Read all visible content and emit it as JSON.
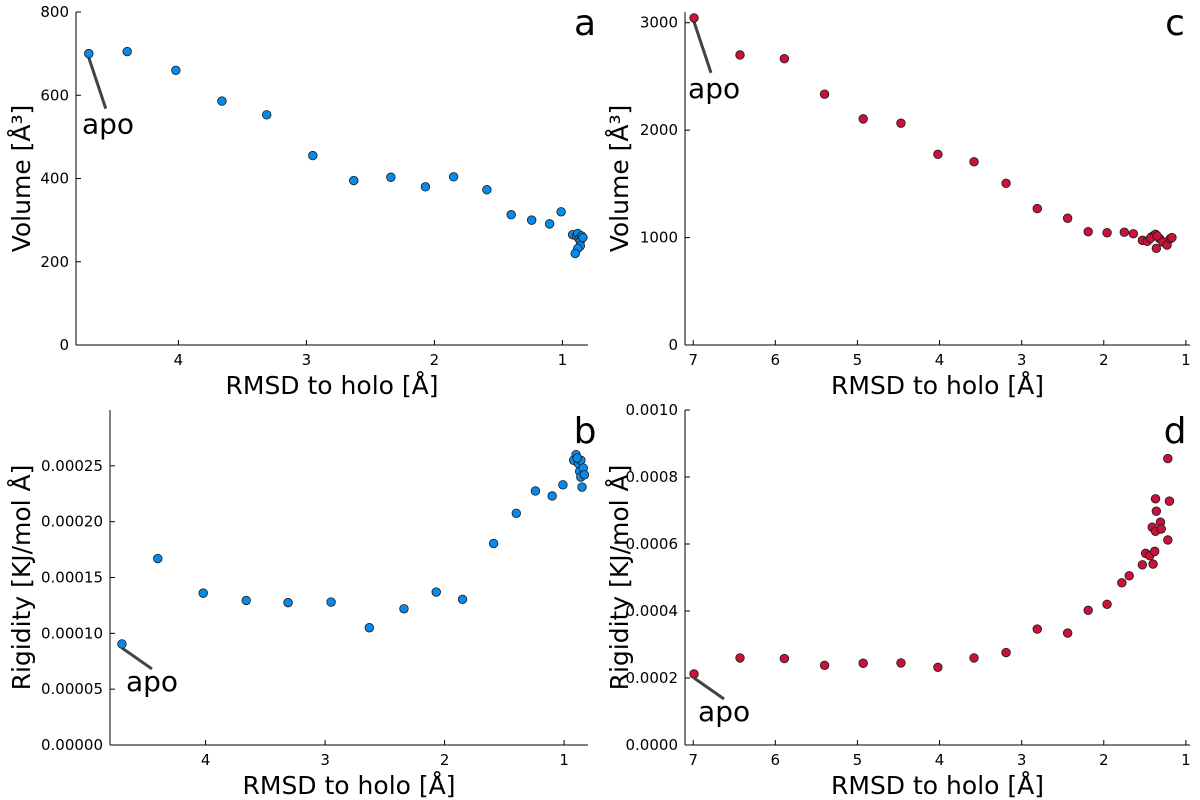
{
  "chart_data": [
    {
      "type": "scatter",
      "panel_label": "a",
      "xlabel": "RMSD to holo [Å]",
      "ylabel": "Volume [Å³]",
      "x_reversed": true,
      "xlim": [
        4.8,
        0.8
      ],
      "ylim": [
        0,
        800
      ],
      "xticks": [
        4,
        3,
        2,
        1
      ],
      "yticks": [
        0,
        200,
        400,
        600,
        800
      ],
      "xtick_labels": [
        "4",
        "3",
        "2",
        "1"
      ],
      "ytick_labels": [
        "0",
        "200",
        "400",
        "600",
        "800"
      ],
      "grid": false,
      "color": "#0a8ae8",
      "annotation": {
        "text": "apo",
        "x": 4.7,
        "y": 700
      },
      "points": [
        [
          4.7,
          700
        ],
        [
          4.4,
          705
        ],
        [
          4.02,
          660
        ],
        [
          3.66,
          586
        ],
        [
          3.31,
          553
        ],
        [
          2.95,
          455
        ],
        [
          2.63,
          395
        ],
        [
          2.34,
          403
        ],
        [
          2.07,
          380
        ],
        [
          1.85,
          404
        ],
        [
          1.59,
          373
        ],
        [
          1.4,
          313
        ],
        [
          1.24,
          300
        ],
        [
          1.1,
          291
        ],
        [
          1.01,
          320
        ],
        [
          0.92,
          265
        ],
        [
          0.89,
          262
        ],
        [
          0.88,
          268
        ],
        [
          0.87,
          255
        ],
        [
          0.86,
          250
        ],
        [
          0.86,
          238
        ],
        [
          0.88,
          232
        ],
        [
          0.9,
          220
        ],
        [
          0.85,
          262
        ],
        [
          0.84,
          258
        ]
      ]
    },
    {
      "type": "scatter",
      "panel_label": "b",
      "xlabel": "RMSD to holo [Å]",
      "ylabel": "Rigidity [KJ/mol Å]",
      "x_reversed": true,
      "xlim": [
        4.8,
        0.8
      ],
      "ylim": [
        0,
        0.0003
      ],
      "xticks": [
        4,
        3,
        2,
        1
      ],
      "yticks": [
        0,
        5e-05,
        0.0001,
        0.00015,
        0.0002,
        0.00025
      ],
      "xtick_labels": [
        "4",
        "3",
        "2",
        "1"
      ],
      "ytick_labels": [
        "0.00000",
        "0.00005",
        "0.00010",
        "0.00015",
        "0.00020",
        "0.00025"
      ],
      "grid": false,
      "color": "#0a8ae8",
      "annotation": {
        "text": "apo",
        "x": 4.7,
        "y": 9.05e-05
      },
      "points": [
        [
          4.7,
          9.05e-05
        ],
        [
          4.4,
          0.000167
        ],
        [
          4.02,
          0.000136
        ],
        [
          3.66,
          0.0001295
        ],
        [
          3.31,
          0.0001275
        ],
        [
          2.95,
          0.000128
        ],
        [
          2.63,
          0.000105
        ],
        [
          2.34,
          0.000122
        ],
        [
          2.07,
          0.000137
        ],
        [
          1.85,
          0.0001305
        ],
        [
          1.59,
          0.0001805
        ],
        [
          1.4,
          0.0002075
        ],
        [
          1.24,
          0.0002275
        ],
        [
          1.1,
          0.000223
        ],
        [
          1.01,
          0.000233
        ],
        [
          0.92,
          0.000255
        ],
        [
          0.9,
          0.00026
        ],
        [
          0.88,
          0.000252
        ],
        [
          0.87,
          0.000245
        ],
        [
          0.86,
          0.00024
        ],
        [
          0.85,
          0.000231
        ],
        [
          0.86,
          0.000255
        ],
        [
          0.84,
          0.000248
        ],
        [
          0.83,
          0.000242
        ],
        [
          0.89,
          0.000257
        ]
      ]
    },
    {
      "type": "scatter",
      "panel_label": "c",
      "xlabel": "RMSD to holo [Å]",
      "ylabel": "Volume [Å³]",
      "x_reversed": true,
      "xlim": [
        7.1,
        0.95
      ],
      "ylim": [
        0,
        3100
      ],
      "xticks": [
        7,
        6,
        5,
        4,
        3,
        2,
        1
      ],
      "yticks": [
        0,
        1000,
        2000,
        3000
      ],
      "xtick_labels": [
        "7",
        "6",
        "5",
        "4",
        "3",
        "2",
        "1"
      ],
      "ytick_labels": [
        "0",
        "1000",
        "2000",
        "3000"
      ],
      "grid": false,
      "color": "#c8123a",
      "annotation": {
        "text": "apo",
        "x": 6.99,
        "y": 3045
      },
      "points": [
        [
          6.99,
          3045
        ],
        [
          6.43,
          2700
        ],
        [
          5.89,
          2665
        ],
        [
          5.4,
          2335
        ],
        [
          4.93,
          2105
        ],
        [
          4.47,
          2065
        ],
        [
          4.02,
          1775
        ],
        [
          3.58,
          1705
        ],
        [
          3.19,
          1505
        ],
        [
          2.81,
          1270
        ],
        [
          2.44,
          1180
        ],
        [
          2.19,
          1055
        ],
        [
          1.96,
          1045
        ],
        [
          1.75,
          1050
        ],
        [
          1.64,
          1035
        ],
        [
          1.53,
          975
        ],
        [
          1.47,
          965
        ],
        [
          1.42,
          1005
        ],
        [
          1.39,
          1020
        ],
        [
          1.37,
          1030
        ],
        [
          1.36,
          900
        ],
        [
          1.32,
          990
        ],
        [
          1.28,
          960
        ],
        [
          1.23,
          930
        ],
        [
          1.19,
          990
        ],
        [
          1.17,
          1000
        ],
        [
          1.43,
          995
        ],
        [
          1.35,
          1015
        ]
      ]
    },
    {
      "type": "scatter",
      "panel_label": "d",
      "xlabel": "RMSD to holo [Å]",
      "ylabel": "Rigidity [KJ/mol Å]",
      "x_reversed": true,
      "xlim": [
        7.1,
        0.95
      ],
      "ylim": [
        0,
        0.001
      ],
      "xticks": [
        7,
        6,
        5,
        4,
        3,
        2,
        1
      ],
      "yticks": [
        0,
        0.0002,
        0.0004,
        0.0006,
        0.0008,
        0.001
      ],
      "xtick_labels": [
        "7",
        "6",
        "5",
        "4",
        "3",
        "2",
        "1"
      ],
      "ytick_labels": [
        "0.0000",
        "0.0002",
        "0.0004",
        "0.0006",
        "0.0008",
        "0.0010"
      ],
      "grid": false,
      "color": "#c8123a",
      "annotation": {
        "text": "apo",
        "x": 6.99,
        "y": 0.000212
      },
      "points": [
        [
          6.99,
          0.000212
        ],
        [
          6.43,
          0.00026
        ],
        [
          5.89,
          0.000258
        ],
        [
          5.4,
          0.000238
        ],
        [
          4.93,
          0.000244
        ],
        [
          4.47,
          0.000245
        ],
        [
          4.02,
          0.000232
        ],
        [
          3.58,
          0.00026
        ],
        [
          3.19,
          0.000276
        ],
        [
          2.81,
          0.000346
        ],
        [
          2.44,
          0.000334
        ],
        [
          2.19,
          0.000402
        ],
        [
          1.96,
          0.00042
        ],
        [
          1.78,
          0.000484
        ],
        [
          1.69,
          0.000505
        ],
        [
          1.53,
          0.000538
        ],
        [
          1.49,
          0.000572
        ],
        [
          1.44,
          0.000565
        ],
        [
          1.4,
          0.00054
        ],
        [
          1.38,
          0.000578
        ],
        [
          1.41,
          0.00065
        ],
        [
          1.37,
          0.000638
        ],
        [
          1.36,
          0.000698
        ],
        [
          1.37,
          0.000735
        ],
        [
          1.31,
          0.000665
        ],
        [
          1.3,
          0.000645
        ],
        [
          1.22,
          0.000612
        ],
        [
          1.2,
          0.000728
        ],
        [
          1.22,
          0.000855
        ]
      ]
    }
  ]
}
